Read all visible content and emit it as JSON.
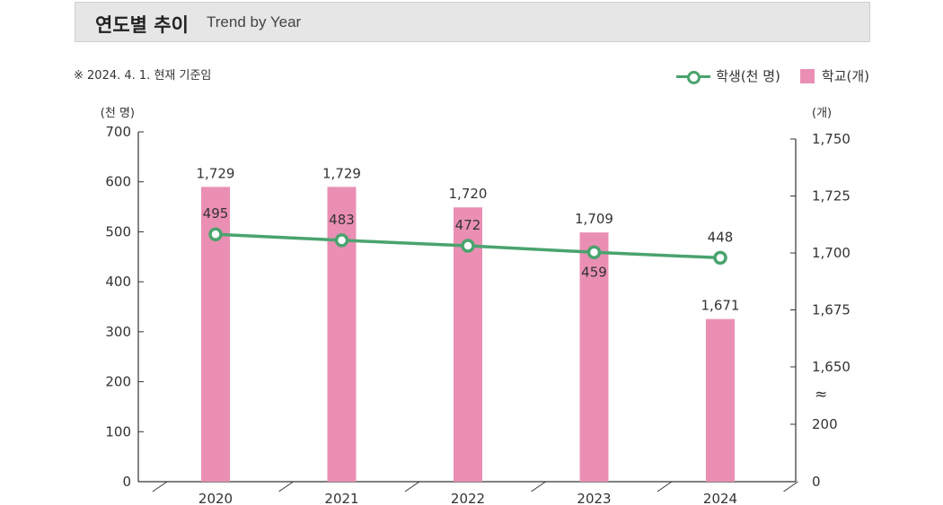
{
  "header": {
    "title_ko": "연도별 추이",
    "title_en": "Trend by Year"
  },
  "note": "※ 2024. 4. 1. 현재 기준임",
  "legend": {
    "students": "학생(천 명)",
    "schools": "학교(개)"
  },
  "colors": {
    "bar": "#ea8fb3",
    "line": "#4aa36e",
    "axis": "#333333"
  },
  "chart_data": {
    "type": "bar",
    "categories": [
      "2020",
      "2021",
      "2022",
      "2023",
      "2024"
    ],
    "series": [
      {
        "name": "학교(개)",
        "type": "bar",
        "axis": "right",
        "values": [
          1729,
          1729,
          1720,
          1709,
          1671
        ]
      },
      {
        "name": "학생(천 명)",
        "type": "line",
        "axis": "left",
        "values": [
          495,
          483,
          472,
          459,
          448
        ]
      }
    ],
    "left_axis": {
      "unit": "(천 명)",
      "range": [
        0,
        700
      ],
      "ticks": [
        "0",
        "100",
        "200",
        "300",
        "400",
        "500",
        "600",
        "700"
      ]
    },
    "right_axis": {
      "unit": "(개)",
      "break": "≈",
      "ticks": [
        "0",
        "200",
        "1,650",
        "1,675",
        "1,700",
        "1,725",
        "1,750"
      ]
    },
    "bar_labels": [
      "1,729",
      "1,729",
      "1,720",
      "1,709",
      "1,671"
    ],
    "line_labels": [
      "495",
      "483",
      "472",
      "459",
      "448"
    ],
    "grid": false,
    "legend_position": "top-right"
  }
}
